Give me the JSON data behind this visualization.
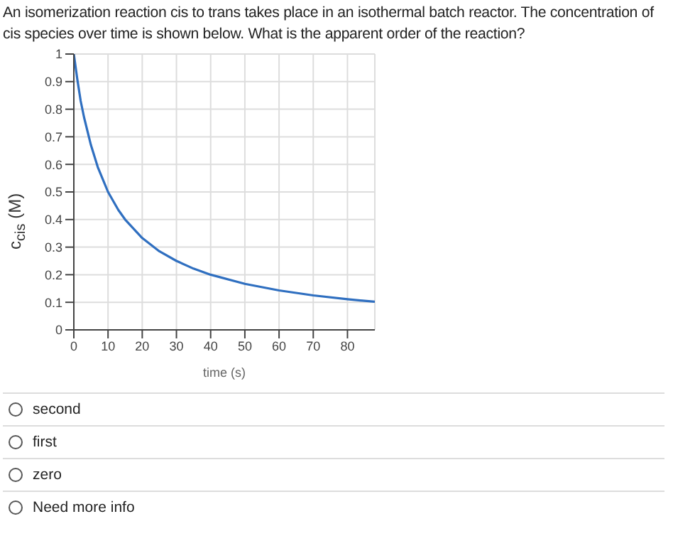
{
  "chart_data": {
    "type": "line",
    "title": "An isomerization reaction cis to trans takes place in an isothermal batch reactor. The concentration of cis species over time is shown below. What is the apparent order of the reaction?",
    "xlabel": "time (s)",
    "ylabel": "c$_{cis}$ (M)",
    "x": [
      0,
      1,
      2,
      3,
      5,
      7,
      10,
      13,
      15,
      20,
      25,
      30,
      35,
      40,
      50,
      60,
      70,
      80,
      88
    ],
    "series": [
      {
        "color": "#2f6fc0",
        "values": [
          1,
          0.91,
          0.83,
          0.77,
          0.67,
          0.59,
          0.5,
          0.435,
          0.4,
          0.333,
          0.285,
          0.25,
          0.222,
          0.2,
          0.167,
          0.143,
          0.125,
          0.111,
          0.102
        ]
      }
    ],
    "xlim": [
      0,
      88
    ],
    "xticks": [
      0,
      10,
      20,
      30,
      40,
      50,
      60,
      70,
      80
    ],
    "ylim": [
      0,
      1
    ],
    "yticks": [
      0,
      0.1,
      0.2,
      0.3,
      0.4,
      0.5,
      0.6,
      0.7,
      0.8,
      0.9,
      1
    ],
    "grid": true,
    "legend": false,
    "marker": "none",
    "line_style": "solid",
    "annotations": [
      "second",
      "first",
      "zero",
      "Need more info"
    ]
  }
}
